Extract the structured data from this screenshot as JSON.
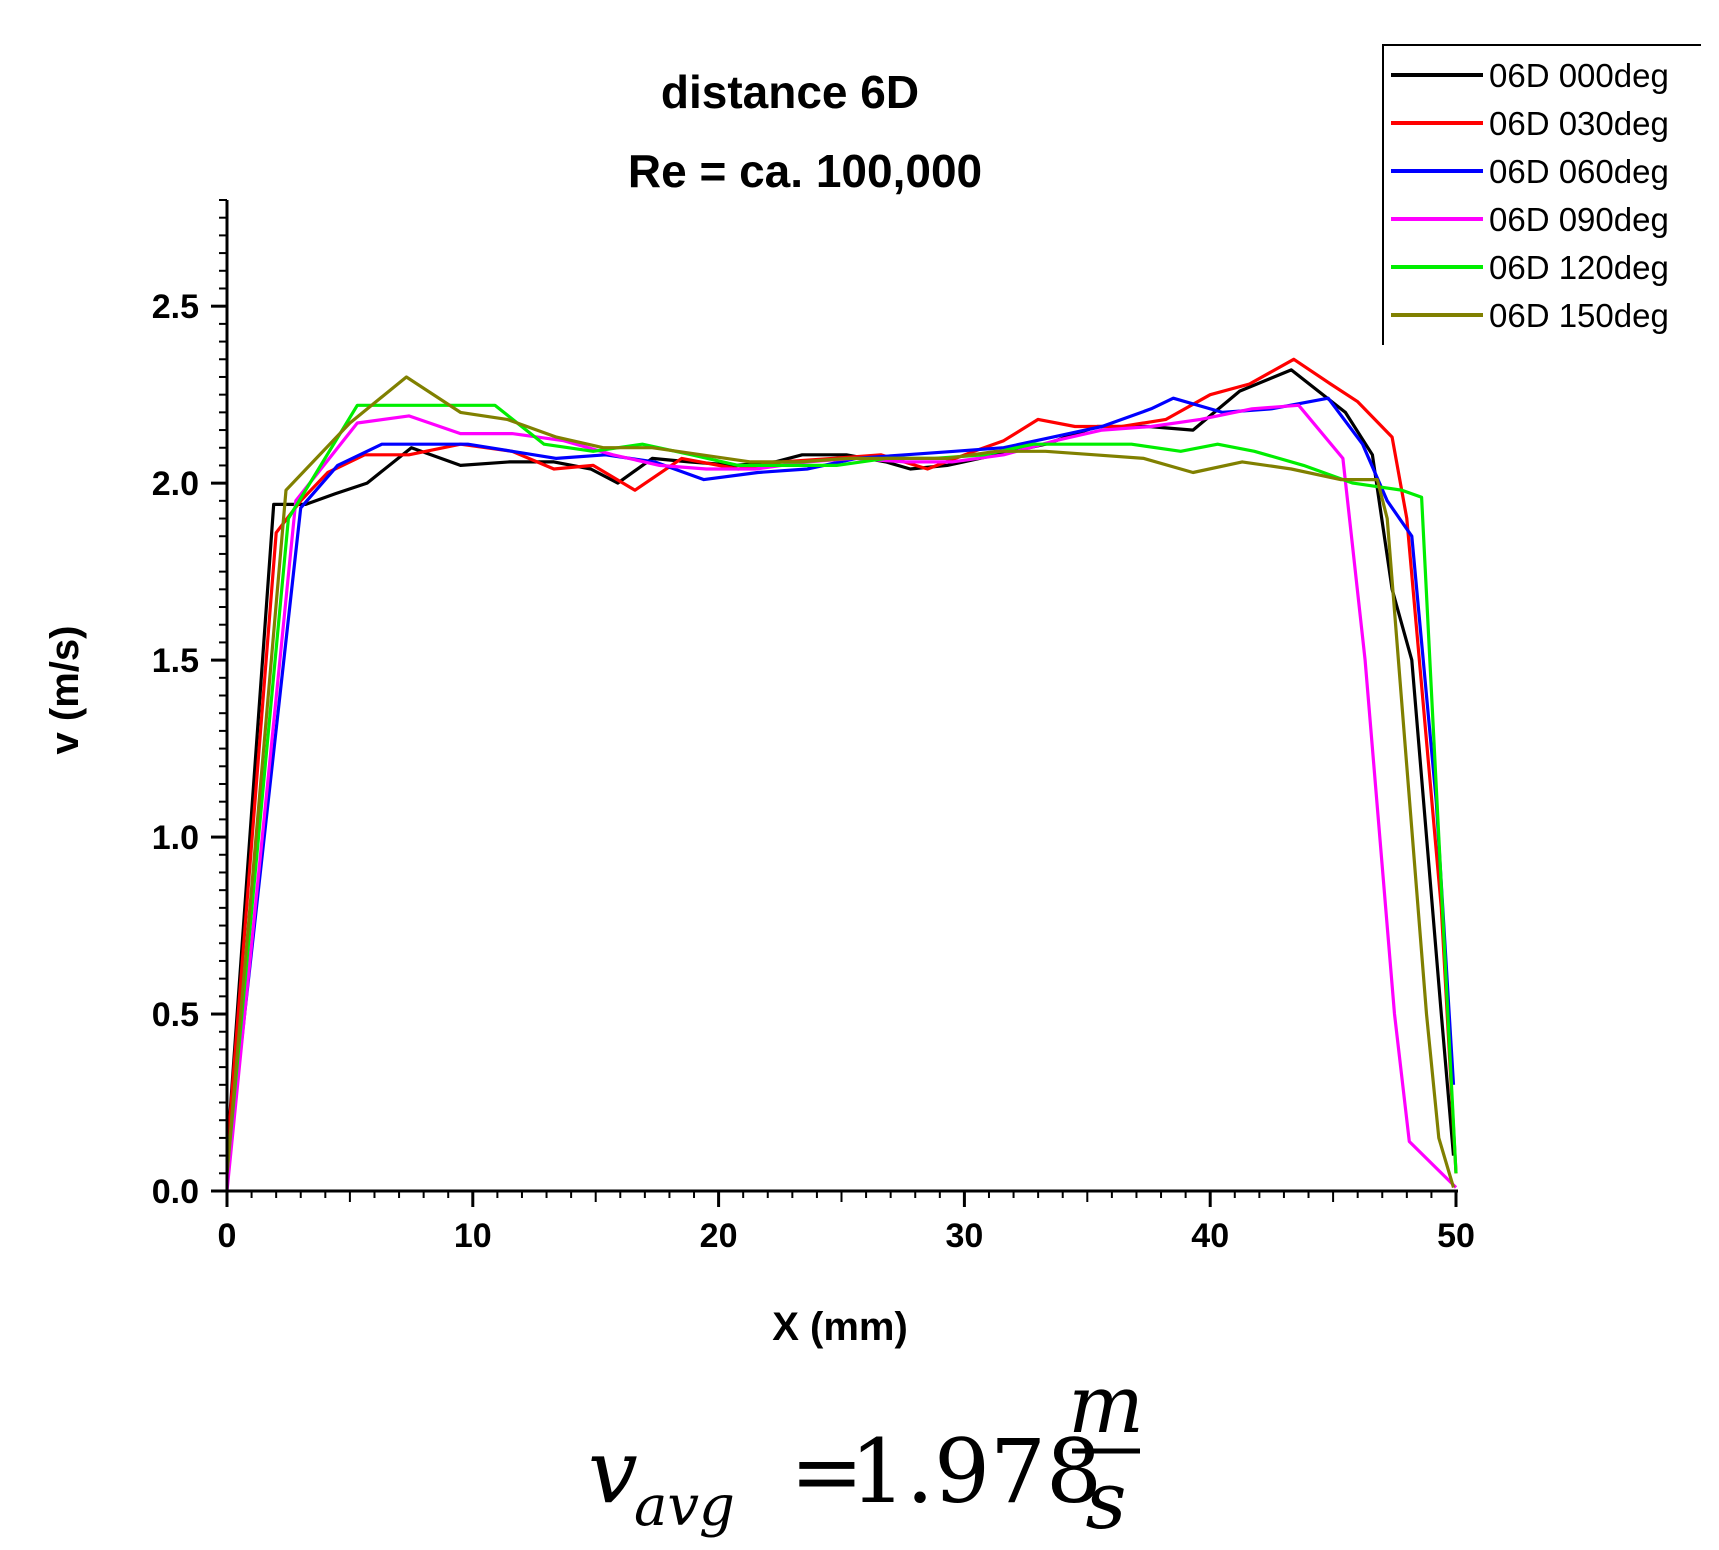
{
  "chart_data": {
    "type": "line",
    "title": "distance 6D",
    "subtitle": "Re = ca. 100,000",
    "xlabel": "X (mm)",
    "ylabel": "v (m/s)",
    "xlim": [
      0,
      50
    ],
    "ylim": [
      0,
      2.8
    ],
    "xticks": [
      0,
      10,
      20,
      30,
      40,
      50
    ],
    "xtick_labels": [
      "0",
      "10",
      "20",
      "30",
      "40",
      "50"
    ],
    "yticks": [
      0,
      0.5,
      1.0,
      1.5,
      2.0,
      2.5
    ],
    "ytick_labels": [
      "0.0",
      "0.5",
      "1.0",
      "1.5",
      "2.0",
      "2.5"
    ],
    "grid": false,
    "legend_position": "top-right",
    "series": [
      {
        "name": "06D 000deg",
        "color": "#000000",
        "points": [
          [
            0,
            0.1
          ],
          [
            1.9,
            1.94
          ],
          [
            3.2,
            1.94
          ],
          [
            4.4,
            1.97
          ],
          [
            5.7,
            2.0
          ],
          [
            7.5,
            2.1
          ],
          [
            9.5,
            2.05
          ],
          [
            11.5,
            2.06
          ],
          [
            13.3,
            2.06
          ],
          [
            14.8,
            2.04
          ],
          [
            15.9,
            2.0
          ],
          [
            17.3,
            2.07
          ],
          [
            18.8,
            2.06
          ],
          [
            20.7,
            2.05
          ],
          [
            22.3,
            2.06
          ],
          [
            23.4,
            2.08
          ],
          [
            25.2,
            2.08
          ],
          [
            26.8,
            2.06
          ],
          [
            27.8,
            2.04
          ],
          [
            29.3,
            2.05
          ],
          [
            31.3,
            2.08
          ],
          [
            33.3,
            2.11
          ],
          [
            35.4,
            2.16
          ],
          [
            37.5,
            2.16
          ],
          [
            39.3,
            2.15
          ],
          [
            41.2,
            2.26
          ],
          [
            43.3,
            2.32
          ],
          [
            45.5,
            2.2
          ],
          [
            46.6,
            2.08
          ],
          [
            47.4,
            1.7
          ],
          [
            48.2,
            1.5
          ],
          [
            49.4,
            0.5
          ],
          [
            49.9,
            0.1
          ]
        ]
      },
      {
        "name": "06D 030deg",
        "color": "#ff0000",
        "points": [
          [
            0,
            0.1
          ],
          [
            2.0,
            1.86
          ],
          [
            3.0,
            1.95
          ],
          [
            4.1,
            2.03
          ],
          [
            5.6,
            2.08
          ],
          [
            7.4,
            2.08
          ],
          [
            9.5,
            2.11
          ],
          [
            11.6,
            2.09
          ],
          [
            13.3,
            2.04
          ],
          [
            14.9,
            2.05
          ],
          [
            16.6,
            1.98
          ],
          [
            18.5,
            2.07
          ],
          [
            20.8,
            2.04
          ],
          [
            22.6,
            2.06
          ],
          [
            24.7,
            2.07
          ],
          [
            26.6,
            2.08
          ],
          [
            28.5,
            2.04
          ],
          [
            30.4,
            2.09
          ],
          [
            31.6,
            2.12
          ],
          [
            33.0,
            2.18
          ],
          [
            34.5,
            2.16
          ],
          [
            36.4,
            2.16
          ],
          [
            38.2,
            2.18
          ],
          [
            40.0,
            2.25
          ],
          [
            41.6,
            2.28
          ],
          [
            43.4,
            2.35
          ],
          [
            44.9,
            2.28
          ],
          [
            46.0,
            2.23
          ],
          [
            47.4,
            2.13
          ],
          [
            48.0,
            1.9
          ],
          [
            49.4,
            0.8
          ],
          [
            50.0,
            0.05
          ]
        ]
      },
      {
        "name": "06D 060deg",
        "color": "#0000ff",
        "points": [
          [
            0,
            0.05
          ],
          [
            3.0,
            1.93
          ],
          [
            4.5,
            2.05
          ],
          [
            6.3,
            2.11
          ],
          [
            8.2,
            2.11
          ],
          [
            9.8,
            2.11
          ],
          [
            11.6,
            2.09
          ],
          [
            13.4,
            2.07
          ],
          [
            15.4,
            2.08
          ],
          [
            17.4,
            2.06
          ],
          [
            19.4,
            2.01
          ],
          [
            21.6,
            2.03
          ],
          [
            23.6,
            2.04
          ],
          [
            25.6,
            2.07
          ],
          [
            27.6,
            2.08
          ],
          [
            29.6,
            2.09
          ],
          [
            31.6,
            2.1
          ],
          [
            33.6,
            2.13
          ],
          [
            35.6,
            2.16
          ],
          [
            37.6,
            2.21
          ],
          [
            38.5,
            2.24
          ],
          [
            40.5,
            2.2
          ],
          [
            42.5,
            2.21
          ],
          [
            44.8,
            2.24
          ],
          [
            46.2,
            2.11
          ],
          [
            47.2,
            1.95
          ],
          [
            48.2,
            1.85
          ],
          [
            49.2,
            1.1
          ],
          [
            49.9,
            0.3
          ]
        ]
      },
      {
        "name": "06D 090deg",
        "color": "#ff00ff",
        "points": [
          [
            0,
            0.0
          ],
          [
            2.8,
            1.95
          ],
          [
            5.3,
            2.17
          ],
          [
            7.4,
            2.19
          ],
          [
            9.5,
            2.14
          ],
          [
            11.6,
            2.14
          ],
          [
            13.7,
            2.12
          ],
          [
            15.7,
            2.08
          ],
          [
            17.6,
            2.05
          ],
          [
            19.5,
            2.04
          ],
          [
            21.5,
            2.04
          ],
          [
            23.6,
            2.06
          ],
          [
            25.5,
            2.07
          ],
          [
            27.6,
            2.06
          ],
          [
            29.5,
            2.06
          ],
          [
            31.6,
            2.08
          ],
          [
            33.7,
            2.12
          ],
          [
            35.6,
            2.15
          ],
          [
            37.6,
            2.16
          ],
          [
            39.6,
            2.18
          ],
          [
            41.7,
            2.21
          ],
          [
            43.6,
            2.22
          ],
          [
            45.4,
            2.07
          ],
          [
            46.3,
            1.5
          ],
          [
            47.5,
            0.5
          ],
          [
            48.1,
            0.14
          ],
          [
            50.0,
            0.01
          ]
        ]
      },
      {
        "name": "06D 120deg",
        "color": "#00ee00",
        "points": [
          [
            0,
            0.05
          ],
          [
            2.5,
            1.9
          ],
          [
            5.3,
            2.22
          ],
          [
            7.4,
            2.22
          ],
          [
            9.5,
            2.22
          ],
          [
            10.9,
            2.22
          ],
          [
            12.9,
            2.11
          ],
          [
            14.9,
            2.09
          ],
          [
            16.9,
            2.11
          ],
          [
            18.9,
            2.08
          ],
          [
            20.8,
            2.05
          ],
          [
            22.8,
            2.05
          ],
          [
            24.8,
            2.05
          ],
          [
            26.8,
            2.07
          ],
          [
            28.8,
            2.07
          ],
          [
            30.8,
            2.08
          ],
          [
            32.8,
            2.11
          ],
          [
            34.8,
            2.11
          ],
          [
            36.8,
            2.11
          ],
          [
            38.8,
            2.09
          ],
          [
            40.3,
            2.11
          ],
          [
            41.8,
            2.09
          ],
          [
            43.8,
            2.05
          ],
          [
            45.8,
            2.0
          ],
          [
            47.8,
            1.98
          ],
          [
            48.6,
            1.96
          ],
          [
            49.3,
            1.0
          ],
          [
            50.0,
            0.05
          ]
        ]
      },
      {
        "name": "06D 150deg",
        "color": "#808000",
        "points": [
          [
            0,
            0.05
          ],
          [
            2.4,
            1.98
          ],
          [
            5.0,
            2.17
          ],
          [
            7.3,
            2.3
          ],
          [
            9.5,
            2.2
          ],
          [
            11.4,
            2.18
          ],
          [
            13.4,
            2.13
          ],
          [
            15.3,
            2.1
          ],
          [
            17.3,
            2.1
          ],
          [
            19.3,
            2.08
          ],
          [
            21.3,
            2.06
          ],
          [
            23.3,
            2.06
          ],
          [
            25.3,
            2.07
          ],
          [
            27.3,
            2.07
          ],
          [
            29.3,
            2.07
          ],
          [
            31.3,
            2.09
          ],
          [
            33.3,
            2.09
          ],
          [
            35.3,
            2.08
          ],
          [
            37.3,
            2.07
          ],
          [
            39.3,
            2.03
          ],
          [
            41.3,
            2.06
          ],
          [
            43.3,
            2.04
          ],
          [
            45.3,
            2.01
          ],
          [
            46.8,
            2.01
          ],
          [
            47.2,
            1.9
          ],
          [
            48.0,
            1.2
          ],
          [
            48.8,
            0.5
          ],
          [
            49.3,
            0.15
          ],
          [
            49.9,
            0.01
          ]
        ]
      }
    ]
  },
  "formula": {
    "variable": "v",
    "subscript": "avg",
    "equals": "=",
    "value": "1.978",
    "numerator": "m",
    "denominator": "s"
  }
}
